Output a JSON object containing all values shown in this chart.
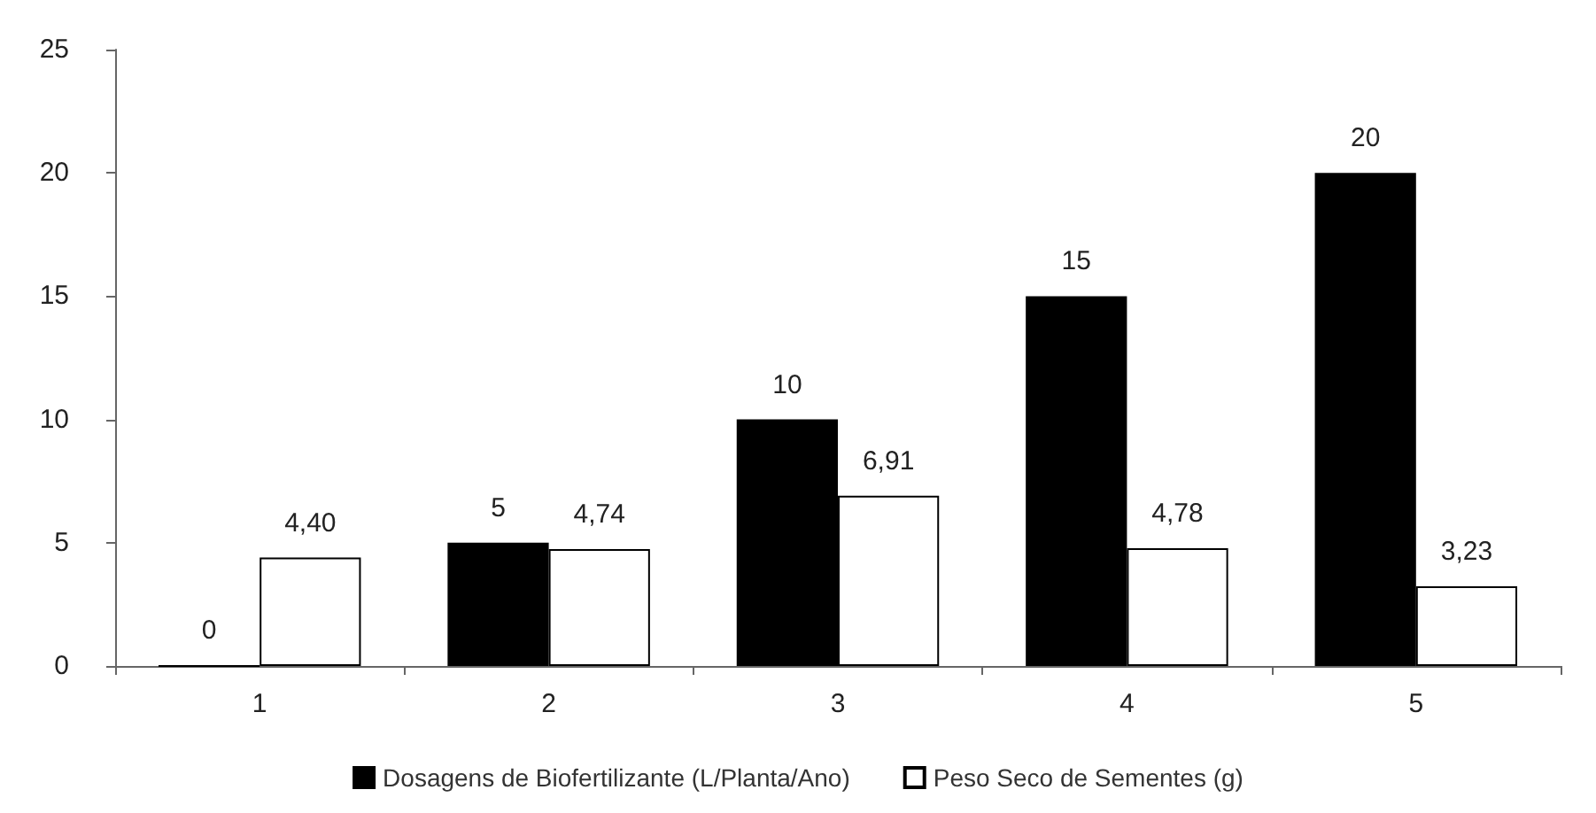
{
  "chart_data": {
    "type": "bar",
    "categories": [
      "1",
      "2",
      "3",
      "4",
      "5"
    ],
    "series": [
      {
        "name": "Dosagens de Biofertilizante (L/Planta/Ano)",
        "color": "#000000",
        "values": [
          0,
          5,
          10,
          15,
          20
        ],
        "value_labels": [
          "0",
          "5",
          "10",
          "15",
          "20"
        ]
      },
      {
        "name": "Peso Seco de Sementes (g)",
        "color": "#ffffff",
        "values": [
          4.4,
          4.74,
          6.91,
          4.78,
          3.23
        ],
        "value_labels": [
          "4,40",
          "4,74",
          "6,91",
          "4,78",
          "3,23"
        ]
      }
    ],
    "ylim": [
      0,
      25
    ],
    "yticks": [
      0,
      5,
      10,
      15,
      20,
      25
    ],
    "grid": false,
    "legend": "bottom"
  }
}
